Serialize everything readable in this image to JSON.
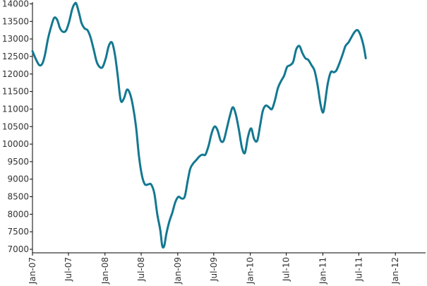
{
  "chart_data": {
    "type": "line",
    "title": "",
    "xlabel": "",
    "ylabel": "",
    "grid": false,
    "legend": "none",
    "colors": {
      "series": "#137891",
      "axis": "#000000",
      "text": "#333333"
    },
    "xlim": [
      "2007-01",
      "2012-06"
    ],
    "ylim": [
      6900,
      14050
    ],
    "y_ticks": [
      7000,
      7500,
      8000,
      8500,
      9000,
      9500,
      10000,
      10500,
      11000,
      11500,
      12000,
      12500,
      13000,
      13500,
      14000
    ],
    "x_ticks": [
      {
        "label": "Jan-07",
        "date": "2007-01"
      },
      {
        "label": "Jul-07",
        "date": "2007-07"
      },
      {
        "label": "Jan-08",
        "date": "2008-01"
      },
      {
        "label": "Jul-08",
        "date": "2008-07"
      },
      {
        "label": "Jan-09",
        "date": "2009-01"
      },
      {
        "label": "Jul-09",
        "date": "2009-07"
      },
      {
        "label": "Jan-10",
        "date": "2010-01"
      },
      {
        "label": "Jul-10",
        "date": "2010-07"
      },
      {
        "label": "Jan-11",
        "date": "2011-01"
      },
      {
        "label": "Jul-11",
        "date": "2011-07"
      },
      {
        "label": "Jan-12",
        "date": "2012-01"
      }
    ],
    "series": [
      {
        "points": [
          [
            "2007-01-01",
            12650
          ],
          [
            "2007-01-20",
            12400
          ],
          [
            "2007-02-05",
            12250
          ],
          [
            "2007-02-20",
            12300
          ],
          [
            "2007-03-05",
            12550
          ],
          [
            "2007-03-20",
            13000
          ],
          [
            "2007-04-05",
            13350
          ],
          [
            "2007-04-20",
            13600
          ],
          [
            "2007-05-05",
            13550
          ],
          [
            "2007-05-20",
            13300
          ],
          [
            "2007-06-05",
            13200
          ],
          [
            "2007-06-20",
            13250
          ],
          [
            "2007-07-05",
            13500
          ],
          [
            "2007-07-20",
            13850
          ],
          [
            "2007-08-01",
            14000
          ],
          [
            "2007-08-10",
            14000
          ],
          [
            "2007-08-25",
            13700
          ],
          [
            "2007-09-05",
            13450
          ],
          [
            "2007-09-20",
            13300
          ],
          [
            "2007-10-05",
            13250
          ],
          [
            "2007-10-20",
            13050
          ],
          [
            "2007-11-05",
            12700
          ],
          [
            "2007-11-20",
            12350
          ],
          [
            "2007-12-05",
            12200
          ],
          [
            "2007-12-20",
            12200
          ],
          [
            "2008-01-05",
            12450
          ],
          [
            "2008-01-20",
            12800
          ],
          [
            "2008-02-05",
            12900
          ],
          [
            "2008-02-20",
            12550
          ],
          [
            "2008-03-05",
            11950
          ],
          [
            "2008-03-20",
            11250
          ],
          [
            "2008-04-05",
            11300
          ],
          [
            "2008-04-20",
            11550
          ],
          [
            "2008-05-05",
            11450
          ],
          [
            "2008-05-20",
            11100
          ],
          [
            "2008-06-05",
            10500
          ],
          [
            "2008-06-20",
            9650
          ],
          [
            "2008-07-05",
            9100
          ],
          [
            "2008-07-20",
            8850
          ],
          [
            "2008-08-05",
            8850
          ],
          [
            "2008-08-20",
            8850
          ],
          [
            "2008-09-05",
            8600
          ],
          [
            "2008-09-20",
            8000
          ],
          [
            "2008-10-05",
            7550
          ],
          [
            "2008-10-15",
            7100
          ],
          [
            "2008-10-25",
            7100
          ],
          [
            "2008-11-05",
            7450
          ],
          [
            "2008-11-20",
            7800
          ],
          [
            "2008-12-05",
            8050
          ],
          [
            "2008-12-20",
            8350
          ],
          [
            "2009-01-05",
            8500
          ],
          [
            "2009-01-20",
            8450
          ],
          [
            "2009-02-05",
            8500
          ],
          [
            "2009-02-20",
            8950
          ],
          [
            "2009-03-05",
            9300
          ],
          [
            "2009-03-20",
            9450
          ],
          [
            "2009-04-05",
            9550
          ],
          [
            "2009-04-20",
            9650
          ],
          [
            "2009-05-05",
            9700
          ],
          [
            "2009-05-20",
            9700
          ],
          [
            "2009-06-05",
            9950
          ],
          [
            "2009-06-20",
            10300
          ],
          [
            "2009-07-05",
            10500
          ],
          [
            "2009-07-20",
            10400
          ],
          [
            "2009-08-05",
            10100
          ],
          [
            "2009-08-20",
            10100
          ],
          [
            "2009-09-05",
            10450
          ],
          [
            "2009-09-20",
            10800
          ],
          [
            "2009-10-05",
            11050
          ],
          [
            "2009-10-20",
            10850
          ],
          [
            "2009-11-05",
            10400
          ],
          [
            "2009-11-20",
            9900
          ],
          [
            "2009-12-05",
            9750
          ],
          [
            "2009-12-20",
            10200
          ],
          [
            "2010-01-05",
            10450
          ],
          [
            "2010-01-20",
            10150
          ],
          [
            "2010-02-05",
            10100
          ],
          [
            "2010-02-20",
            10550
          ],
          [
            "2010-03-05",
            10950
          ],
          [
            "2010-03-20",
            11100
          ],
          [
            "2010-04-05",
            11050
          ],
          [
            "2010-04-20",
            11000
          ],
          [
            "2010-05-05",
            11250
          ],
          [
            "2010-05-20",
            11600
          ],
          [
            "2010-06-05",
            11800
          ],
          [
            "2010-06-20",
            11950
          ],
          [
            "2010-07-05",
            12200
          ],
          [
            "2010-07-20",
            12250
          ],
          [
            "2010-08-05",
            12350
          ],
          [
            "2010-08-20",
            12700
          ],
          [
            "2010-09-05",
            12800
          ],
          [
            "2010-09-20",
            12600
          ],
          [
            "2010-10-05",
            12450
          ],
          [
            "2010-10-20",
            12400
          ],
          [
            "2010-11-05",
            12250
          ],
          [
            "2010-11-20",
            12100
          ],
          [
            "2010-12-05",
            11700
          ],
          [
            "2010-12-20",
            11150
          ],
          [
            "2011-01-01",
            10900
          ],
          [
            "2011-01-10",
            11100
          ],
          [
            "2011-01-25",
            11700
          ],
          [
            "2011-02-10",
            12050
          ],
          [
            "2011-02-25",
            12050
          ],
          [
            "2011-03-10",
            12100
          ],
          [
            "2011-03-25",
            12300
          ],
          [
            "2011-04-10",
            12550
          ],
          [
            "2011-04-25",
            12800
          ],
          [
            "2011-05-10",
            12900
          ],
          [
            "2011-05-25",
            13050
          ],
          [
            "2011-06-10",
            13200
          ],
          [
            "2011-06-25",
            13250
          ],
          [
            "2011-07-10",
            13100
          ],
          [
            "2011-07-25",
            12800
          ],
          [
            "2011-08-05",
            12450
          ]
        ]
      }
    ]
  }
}
